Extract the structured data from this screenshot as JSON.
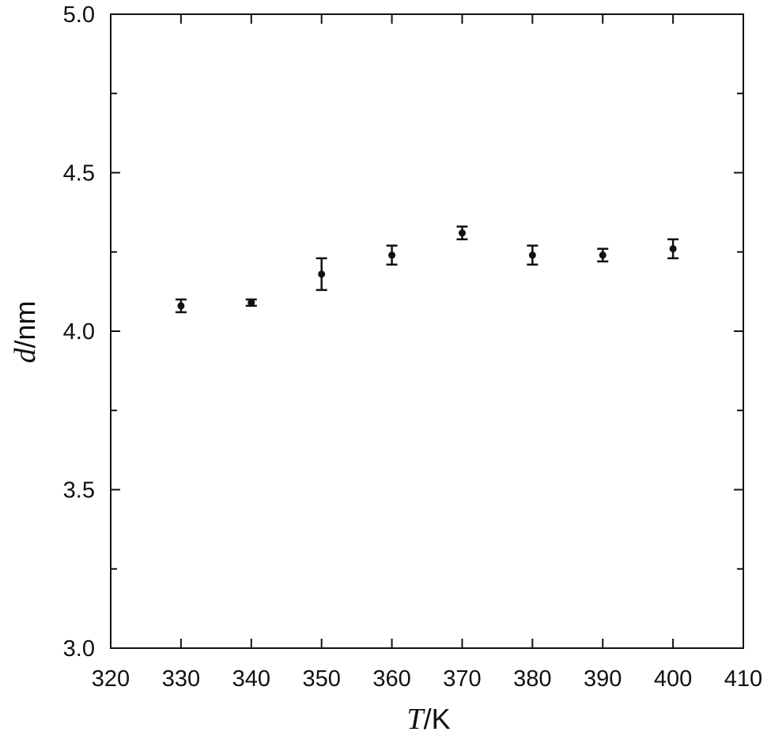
{
  "chart_data": {
    "type": "scatter",
    "xlabel": [
      "T",
      "/K"
    ],
    "ylabel": [
      "d",
      "/nm"
    ],
    "xlim": [
      320,
      410
    ],
    "ylim": [
      3.0,
      5.0
    ],
    "xticks": [
      320,
      330,
      340,
      350,
      360,
      370,
      380,
      390,
      400,
      410
    ],
    "yticks": [
      {
        "value": 3,
        "label": "3.0"
      },
      3.5,
      {
        "value": 4,
        "label": "4.0"
      },
      4.5,
      {
        "value": 5,
        "label": "5.0"
      }
    ],
    "yminor": [
      3.25,
      3.75,
      4.25,
      4.75
    ],
    "series": [
      {
        "color": "#111111",
        "x": [
          330,
          340,
          350,
          360,
          370,
          380,
          390,
          400
        ],
        "values": [
          4.08,
          4.09,
          4.18,
          4.24,
          4.31,
          4.24,
          4.24,
          4.26
        ],
        "errors": [
          0.02,
          0.01,
          0.05,
          0.03,
          0.02,
          0.03,
          0.02,
          0.03
        ]
      }
    ]
  }
}
